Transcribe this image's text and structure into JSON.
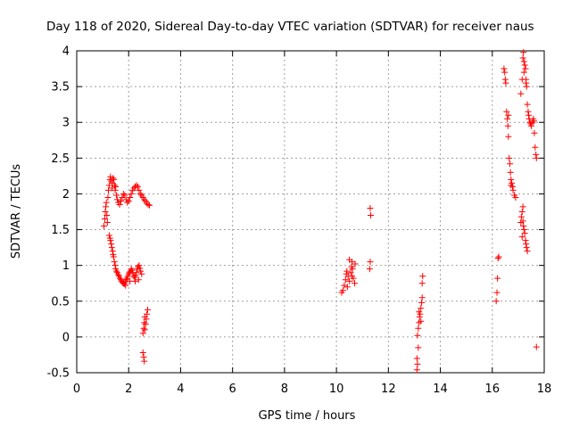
{
  "chart_data": {
    "type": "scatter",
    "title": "Day 118 of 2020, Sidereal Day-to-day VTEC variation (SDTVAR) for receiver naus",
    "xlabel": "GPS time / hours",
    "ylabel": "SDTVAR / TECUs",
    "xlim": [
      0,
      18
    ],
    "ylim": [
      -0.5,
      4
    ],
    "xticks": [
      0,
      2,
      4,
      6,
      8,
      10,
      12,
      14,
      16,
      18
    ],
    "xtick_labels": [
      "0",
      "2",
      "4",
      "6",
      "8",
      "10",
      "12",
      "14",
      "16",
      "18"
    ],
    "yticks": [
      -0.5,
      0,
      0.5,
      1,
      1.5,
      2,
      2.5,
      3,
      3.5,
      4
    ],
    "ytick_labels": [
      "-0.5",
      "0",
      "0.5",
      "1",
      "1.5",
      "2",
      "2.5",
      "3",
      "3.5",
      "4"
    ],
    "grid": true,
    "marker": "+",
    "color": "#ff0000",
    "series": [
      {
        "name": "SDTVAR",
        "points": [
          [
            1.05,
            1.55
          ],
          [
            1.08,
            1.65
          ],
          [
            1.1,
            1.75
          ],
          [
            1.12,
            1.82
          ],
          [
            1.14,
            1.88
          ],
          [
            1.16,
            1.7
          ],
          [
            1.18,
            1.6
          ],
          [
            1.2,
            1.95
          ],
          [
            1.22,
            2.05
          ],
          [
            1.25,
            2.12
          ],
          [
            1.28,
            2.2
          ],
          [
            1.3,
            2.24
          ],
          [
            1.33,
            2.18
          ],
          [
            1.36,
            2.08
          ],
          [
            1.38,
            2.15
          ],
          [
            1.4,
            2.22
          ],
          [
            1.43,
            2.2
          ],
          [
            1.46,
            2.12
          ],
          [
            1.48,
            2.05
          ],
          [
            1.5,
            2.1
          ],
          [
            1.53,
            1.98
          ],
          [
            1.56,
            1.92
          ],
          [
            1.25,
            1.42
          ],
          [
            1.28,
            1.38
          ],
          [
            1.3,
            1.35
          ],
          [
            1.33,
            1.3
          ],
          [
            1.35,
            1.25
          ],
          [
            1.38,
            1.2
          ],
          [
            1.4,
            1.15
          ],
          [
            1.42,
            1.12
          ],
          [
            1.45,
            1.05
          ],
          [
            1.48,
            1.0
          ],
          [
            1.5,
            0.95
          ],
          [
            1.53,
            0.92
          ],
          [
            1.56,
            0.9
          ],
          [
            1.6,
            0.87
          ],
          [
            1.63,
            0.85
          ],
          [
            1.66,
            0.82
          ],
          [
            1.7,
            0.8
          ],
          [
            1.73,
            0.78
          ],
          [
            1.76,
            0.76
          ],
          [
            1.8,
            0.75
          ],
          [
            1.83,
            0.74
          ],
          [
            1.86,
            0.77
          ],
          [
            1.9,
            0.8
          ],
          [
            1.93,
            0.82
          ],
          [
            1.96,
            0.85
          ],
          [
            2.0,
            0.88
          ],
          [
            2.03,
            0.9
          ],
          [
            2.06,
            0.92
          ],
          [
            2.1,
            0.95
          ],
          [
            2.13,
            0.93
          ],
          [
            2.16,
            0.9
          ],
          [
            2.2,
            0.85
          ],
          [
            2.23,
            0.83
          ],
          [
            2.26,
            0.86
          ],
          [
            2.3,
            0.9
          ],
          [
            2.33,
            0.95
          ],
          [
            2.36,
            0.98
          ],
          [
            2.4,
            1.0
          ],
          [
            2.43,
            0.96
          ],
          [
            2.46,
            0.92
          ],
          [
            2.5,
            0.88
          ],
          [
            1.88,
            0.72
          ],
          [
            2.05,
            0.78
          ],
          [
            2.25,
            0.78
          ],
          [
            2.38,
            0.8
          ],
          [
            1.6,
            1.88
          ],
          [
            1.65,
            1.85
          ],
          [
            1.7,
            1.9
          ],
          [
            1.75,
            1.95
          ],
          [
            1.8,
            2.0
          ],
          [
            1.85,
            1.98
          ],
          [
            1.9,
            1.92
          ],
          [
            1.95,
            1.88
          ],
          [
            2.0,
            1.9
          ],
          [
            2.05,
            1.95
          ],
          [
            2.1,
            2.0
          ],
          [
            2.15,
            2.05
          ],
          [
            2.2,
            2.08
          ],
          [
            2.25,
            2.1
          ],
          [
            2.3,
            2.12
          ],
          [
            2.35,
            2.1
          ],
          [
            2.4,
            2.05
          ],
          [
            2.45,
            2.0
          ],
          [
            2.5,
            1.98
          ],
          [
            2.55,
            1.95
          ],
          [
            2.6,
            1.92
          ],
          [
            2.65,
            1.9
          ],
          [
            2.7,
            1.87
          ],
          [
            2.75,
            1.85
          ],
          [
            2.8,
            1.84
          ],
          [
            2.55,
            0.05
          ],
          [
            2.58,
            0.12
          ],
          [
            2.6,
            0.2
          ],
          [
            2.62,
            0.28
          ],
          [
            2.65,
            0.18
          ],
          [
            2.68,
            0.25
          ],
          [
            2.7,
            0.32
          ],
          [
            2.73,
            0.38
          ],
          [
            2.62,
            0.1
          ],
          [
            2.55,
            -0.22
          ],
          [
            2.58,
            -0.28
          ],
          [
            2.6,
            -0.34
          ],
          [
            10.2,
            0.62
          ],
          [
            10.25,
            0.65
          ],
          [
            10.3,
            0.72
          ],
          [
            10.35,
            0.8
          ],
          [
            10.38,
            0.88
          ],
          [
            10.4,
            0.92
          ],
          [
            10.45,
            0.85
          ],
          [
            10.5,
            0.78
          ],
          [
            10.55,
            0.9
          ],
          [
            10.58,
            0.98
          ],
          [
            10.6,
            1.05
          ],
          [
            10.62,
            0.95
          ],
          [
            10.65,
            0.82
          ],
          [
            10.7,
            0.75
          ],
          [
            10.72,
            1.02
          ],
          [
            10.5,
            1.08
          ],
          [
            10.42,
            0.7
          ],
          [
            10.6,
            0.85
          ],
          [
            11.3,
            1.8
          ],
          [
            11.32,
            1.7
          ],
          [
            11.3,
            1.05
          ],
          [
            11.28,
            0.95
          ],
          [
            13.1,
            -0.46
          ],
          [
            13.12,
            -0.38
          ],
          [
            13.1,
            -0.3
          ],
          [
            13.15,
            -0.15
          ],
          [
            13.12,
            0.02
          ],
          [
            13.15,
            0.12
          ],
          [
            13.18,
            0.2
          ],
          [
            13.2,
            0.28
          ],
          [
            13.22,
            0.32
          ],
          [
            13.25,
            0.4
          ],
          [
            13.28,
            0.48
          ],
          [
            13.3,
            0.55
          ],
          [
            13.3,
            0.75
          ],
          [
            13.32,
            0.85
          ],
          [
            13.18,
            0.35
          ],
          [
            13.25,
            0.22
          ],
          [
            16.15,
            0.5
          ],
          [
            16.18,
            0.62
          ],
          [
            16.2,
            0.82
          ],
          [
            16.22,
            1.1
          ],
          [
            16.25,
            1.12
          ],
          [
            16.45,
            3.75
          ],
          [
            16.48,
            3.7
          ],
          [
            16.5,
            3.6
          ],
          [
            16.52,
            3.55
          ],
          [
            16.55,
            3.15
          ],
          [
            16.58,
            3.05
          ],
          [
            16.6,
            2.95
          ],
          [
            16.62,
            2.8
          ],
          [
            16.65,
            2.5
          ],
          [
            16.68,
            2.42
          ],
          [
            16.7,
            2.3
          ],
          [
            16.72,
            2.2
          ],
          [
            16.75,
            2.15
          ],
          [
            16.78,
            2.1
          ],
          [
            16.8,
            2.05
          ],
          [
            16.85,
            1.98
          ],
          [
            16.9,
            1.95
          ],
          [
            16.62,
            3.1
          ],
          [
            16.72,
            2.12
          ],
          [
            17.1,
            3.4
          ],
          [
            17.15,
            3.6
          ],
          [
            17.18,
            3.9
          ],
          [
            17.2,
            3.98
          ],
          [
            17.22,
            3.85
          ],
          [
            17.25,
            3.8
          ],
          [
            17.28,
            3.75
          ],
          [
            17.3,
            3.6
          ],
          [
            17.32,
            3.5
          ],
          [
            17.35,
            3.25
          ],
          [
            17.38,
            3.15
          ],
          [
            17.4,
            3.1
          ],
          [
            17.42,
            3.05
          ],
          [
            17.45,
            3.0
          ],
          [
            17.48,
            2.98
          ],
          [
            17.5,
            2.95
          ],
          [
            17.55,
            3.0
          ],
          [
            17.58,
            3.05
          ],
          [
            17.6,
            3.02
          ],
          [
            17.62,
            2.85
          ],
          [
            17.65,
            2.65
          ],
          [
            17.68,
            2.55
          ],
          [
            17.7,
            2.5
          ],
          [
            17.22,
            3.7
          ],
          [
            17.3,
            3.55
          ],
          [
            17.1,
            1.6
          ],
          [
            17.12,
            1.68
          ],
          [
            17.15,
            1.75
          ],
          [
            17.18,
            1.82
          ],
          [
            17.2,
            1.55
          ],
          [
            17.22,
            1.5
          ],
          [
            17.25,
            1.45
          ],
          [
            17.28,
            1.35
          ],
          [
            17.3,
            1.3
          ],
          [
            17.32,
            1.25
          ],
          [
            17.35,
            1.2
          ],
          [
            17.15,
            1.4
          ],
          [
            17.18,
            1.62
          ],
          [
            17.7,
            -0.14
          ]
        ]
      }
    ]
  }
}
